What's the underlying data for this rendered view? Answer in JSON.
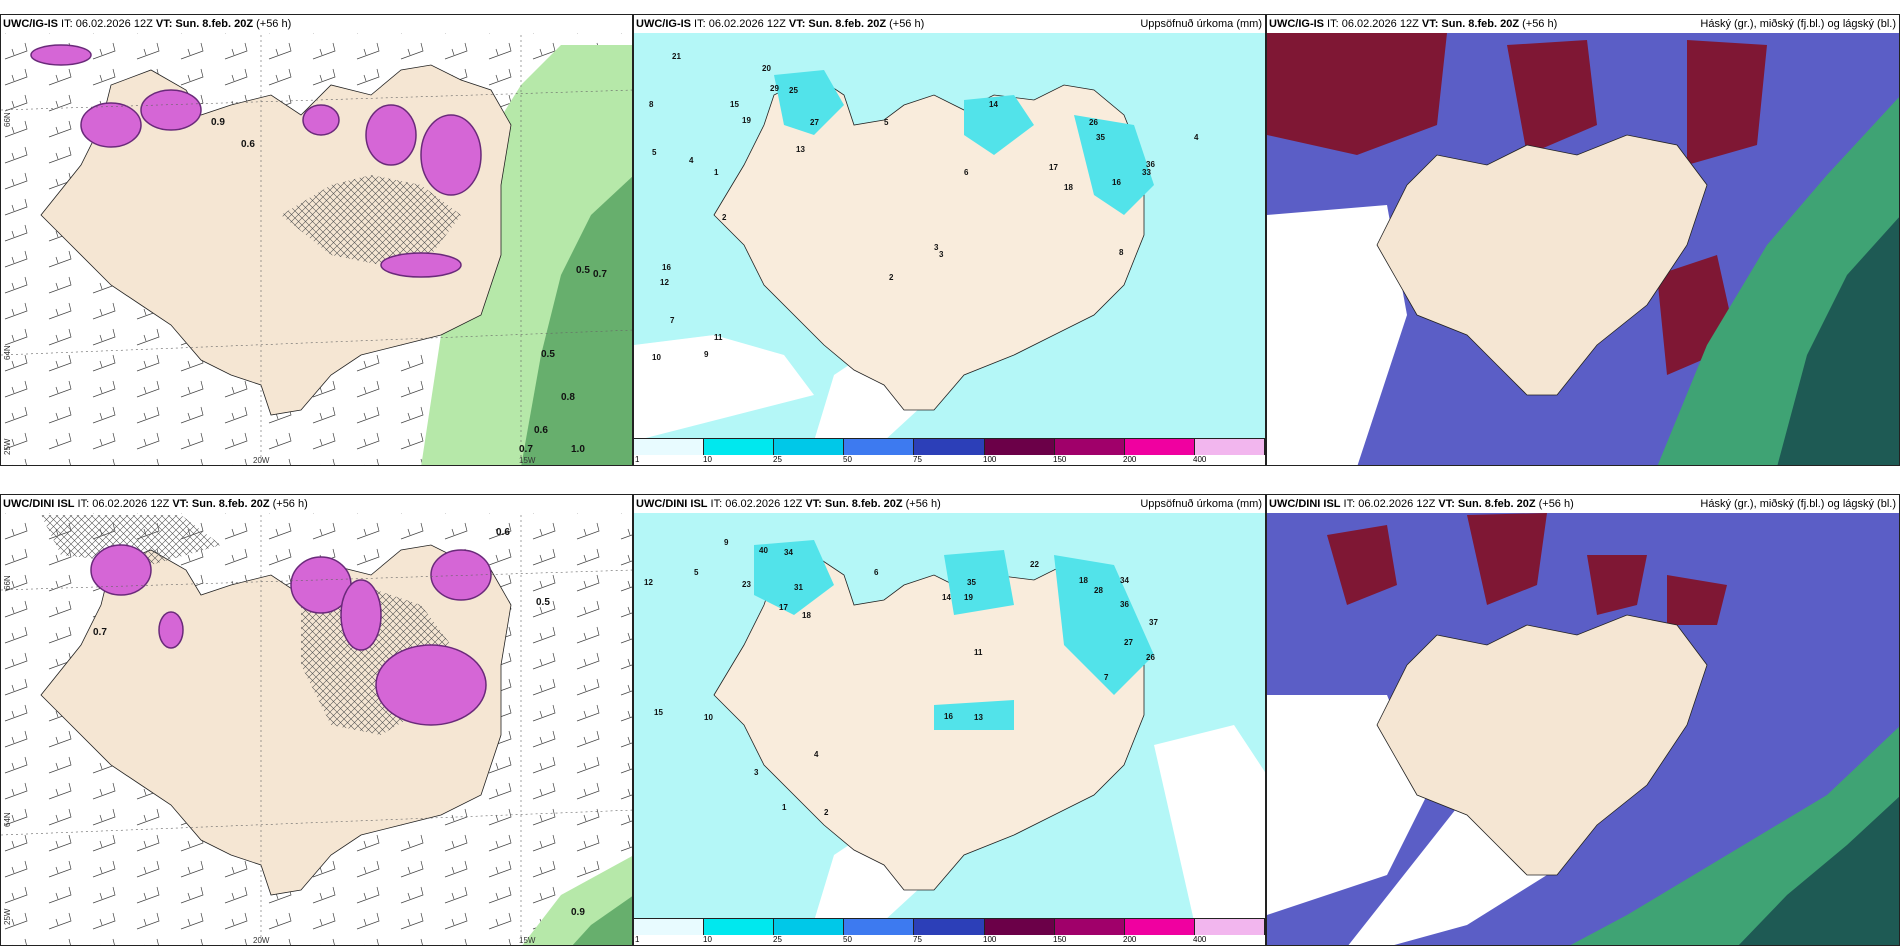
{
  "rows": [
    {
      "model": "UWC/IG-IS",
      "panels": {
        "left": {
          "model": "UWC/IG-IS",
          "prefix": " IT: 06.02.2026 12Z ",
          "vt": "VT: Sun. 8.feb. 20Z",
          "lead": " (+56 h)",
          "title_right": ""
        },
        "middle": {
          "model": "UWC/IG-IS",
          "prefix": " IT: 06.02.2026 12Z ",
          "vt": "VT: Sun. 8.feb. 20Z",
          "lead": " (+56 h)",
          "title_right": "Uppsöfnuð úrkoma (mm)"
        },
        "right": {
          "model": "UWC/IG-IS",
          "prefix": " IT: 06.02.2026 12Z ",
          "vt": "VT: Sun. 8.feb. 20Z",
          "lead": " (+56 h)",
          "title_right": "Háský (gr.), miðský (fj.bl.) og lágský (bl.)"
        }
      },
      "precip_values": [
        "21",
        "8",
        "5",
        "4",
        "1",
        "2",
        "16",
        "12",
        "7",
        "11",
        "9",
        "10",
        "15",
        "19",
        "20",
        "29",
        "25",
        "27",
        "13",
        "5",
        "14",
        "26",
        "35",
        "16",
        "33",
        "36",
        "3",
        "6",
        "17",
        "18",
        "8",
        "4",
        "2",
        "3"
      ],
      "rain_values": [
        "0.9",
        "0.6",
        "0.5",
        "0.7",
        "0.8",
        "0.6",
        "0.5",
        "1.0",
        "0.7"
      ]
    },
    {
      "model": "UWC/DINI ISL",
      "panels": {
        "left": {
          "model": "UWC/DINI ISL",
          "prefix": " IT: 06.02.2026 12Z ",
          "vt": "VT: Sun. 8.feb. 20Z",
          "lead": " (+56 h)",
          "title_right": ""
        },
        "middle": {
          "model": "UWC/DINI ISL",
          "prefix": " IT: 06.02.2026 12Z ",
          "vt": "VT: Sun. 8.feb. 20Z",
          "lead": " (+56 h)",
          "title_right": "Uppsöfnuð úrkoma (mm)"
        },
        "right": {
          "model": "UWC/DINI ISL",
          "prefix": " IT: 06.02.2026 12Z ",
          "vt": "VT: Sun. 8.feb. 20Z",
          "lead": " (+56 h)",
          "title_right": "Háský (gr.), miðský (fj.bl.) og lágský (bl.)"
        }
      },
      "precip_values": [
        "12",
        "9",
        "5",
        "40",
        "34",
        "23",
        "31",
        "17",
        "18",
        "15",
        "10",
        "14",
        "19",
        "35",
        "22",
        "18",
        "28",
        "34",
        "36",
        "37",
        "26",
        "27",
        "13",
        "16",
        "11",
        "6",
        "7",
        "4",
        "3",
        "2",
        "1"
      ],
      "rain_values": [
        "0.5",
        "0.6",
        "0.7",
        "0.9"
      ]
    }
  ],
  "axes": {
    "lon_labels": [
      "20W",
      "15W"
    ],
    "lat_labels": [
      "66N",
      "64N",
      "25W"
    ]
  },
  "precip_legend": {
    "ticks": [
      "1",
      "10",
      "25",
      "50",
      "75",
      "100",
      "150",
      "200",
      "400"
    ],
    "colors": [
      "#e8fbff",
      "#00e8ee",
      "#00c8e8",
      "#3d7af0",
      "#2c3fb8",
      "#6b0048",
      "#a0006a",
      "#f000a0",
      "#f2b6ee"
    ]
  },
  "colors": {
    "land": "#f5e6d3",
    "cyan": "#b4f7f7",
    "cyan_dark": "#52e3ea",
    "magenta": "#d566d6",
    "purple": "#6a2a7a",
    "green_light": "#b6e8a9",
    "green_dark": "#4c9c59",
    "cloud_high": "#3fa374",
    "cloud_mid": "#7f1734",
    "cloud_low": "#5b5ec6"
  }
}
